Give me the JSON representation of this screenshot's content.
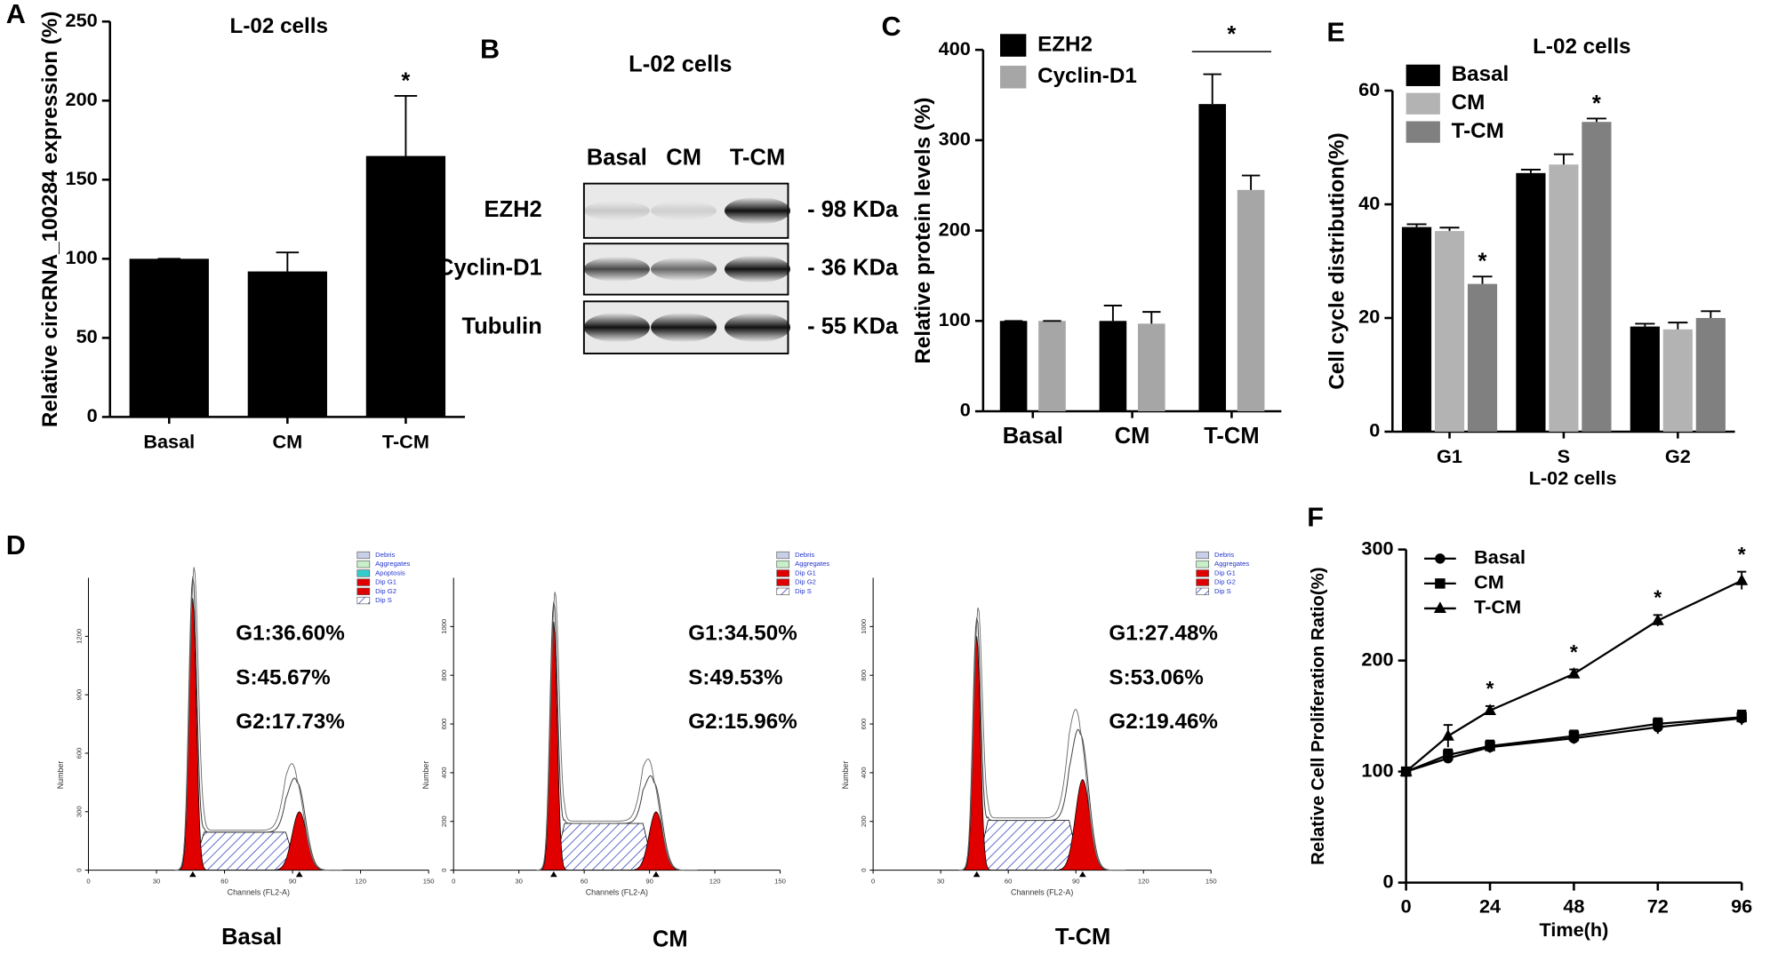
{
  "chart_data": [
    {
      "type": "bar",
      "letter": "A",
      "title": "L-02 cells",
      "ylabel": "Relative circRNA_100284 expression (%)",
      "categories": [
        "Basal",
        "CM",
        "T-CM"
      ],
      "values": [
        100,
        92,
        165
      ],
      "errors": [
        0,
        12,
        38
      ],
      "color": "#000000",
      "ylim": [
        0,
        250
      ],
      "yticks": [
        0,
        50,
        100,
        150,
        200,
        250
      ],
      "annotations": [
        {
          "text": "*",
          "at": "T-CM"
        }
      ]
    },
    {
      "type": "bar",
      "letter": "C",
      "ylabel": "Relative protein levels (%)",
      "categories": [
        "Basal",
        "CM",
        "T-CM"
      ],
      "series": [
        {
          "name": "EZH2",
          "color": "#000000",
          "values": [
            100,
            100,
            340
          ],
          "errors": [
            0,
            17,
            33
          ]
        },
        {
          "name": "Cyclin-D1",
          "color": "#a6a6a6",
          "values": [
            100,
            97,
            245
          ],
          "errors": [
            0,
            13,
            16
          ]
        }
      ],
      "ylim": [
        0,
        400
      ],
      "yticks": [
        0,
        100,
        200,
        300,
        400
      ],
      "legend": "top-left",
      "annotations": [
        {
          "text": "*",
          "at": "T-CM"
        }
      ]
    },
    {
      "type": "bar",
      "letter": "E",
      "title": "L-02 cells",
      "xlabel": "L-02 cells",
      "ylabel": "Cell cycle distribution(%)",
      "categories": [
        "G1",
        "S",
        "G2"
      ],
      "series": [
        {
          "name": "Basal",
          "color": "#000000",
          "values": [
            36,
            45.5,
            18.5
          ],
          "errors": [
            0.5,
            0.6,
            0.5
          ]
        },
        {
          "name": "CM",
          "color": "#b3b3b3",
          "values": [
            35.3,
            47,
            18
          ],
          "errors": [
            0.6,
            1.8,
            1.2
          ]
        },
        {
          "name": "T-CM",
          "color": "#808080",
          "values": [
            26,
            54.5,
            20
          ],
          "errors": [
            1.3,
            0.6,
            1.2
          ]
        }
      ],
      "ylim": [
        0,
        60
      ],
      "yticks": [
        0,
        20,
        40,
        60
      ],
      "legend": "top-left",
      "annotations": [
        {
          "text": "*",
          "at": "G1",
          "series": "T-CM"
        },
        {
          "text": "*",
          "at": "S",
          "series": "T-CM"
        }
      ]
    },
    {
      "type": "line",
      "letter": "F",
      "xlabel": "Time(h)",
      "ylabel": "Relative Cell Proliferation Ratio(%)",
      "x": [
        0,
        12,
        24,
        48,
        72,
        96
      ],
      "series": [
        {
          "name": "Basal",
          "color": "#000000",
          "marker": "circle",
          "values": [
            100,
            112,
            122,
            130,
            140,
            148
          ],
          "errors": [
            0,
            4,
            5,
            5,
            6,
            6
          ]
        },
        {
          "name": "CM",
          "color": "#000000",
          "marker": "square",
          "values": [
            100,
            115,
            123,
            132,
            143,
            149
          ],
          "errors": [
            0,
            5,
            5,
            5,
            5,
            6
          ]
        },
        {
          "name": "T-CM",
          "color": "#000000",
          "marker": "triangle",
          "values": [
            100,
            132,
            155,
            188,
            236,
            272
          ],
          "errors": [
            0,
            10,
            4,
            4,
            5,
            8
          ]
        }
      ],
      "xlim": [
        0,
        96
      ],
      "xticks": [
        0,
        24,
        48,
        72,
        96
      ],
      "ylim": [
        0,
        300
      ],
      "yticks": [
        0,
        100,
        200,
        300
      ],
      "legend": "top-left",
      "annotations": [
        {
          "text": "*",
          "at": 24
        },
        {
          "text": "*",
          "at": 48
        },
        {
          "text": "*",
          "at": 72
        },
        {
          "text": "*",
          "at": 96
        }
      ]
    }
  ],
  "blot": {
    "letter": "B",
    "title": "L-02 cells",
    "lanes": [
      "Basal",
      "CM",
      "T-CM"
    ],
    "rows": [
      {
        "name": "EZH2",
        "size": "- 98 KDa"
      },
      {
        "name": "Cyclin-D1",
        "size": "- 36 KDa"
      },
      {
        "name": "Tubulin",
        "size": "- 55 KDa"
      }
    ]
  },
  "flow": {
    "letter": "D",
    "xlabel": "Channels (FL2-A)",
    "ylabel": "Number",
    "xlim": [
      0,
      150
    ],
    "xticks": [
      0,
      30,
      60,
      90,
      120,
      150
    ],
    "panels": [
      {
        "label": "Basal",
        "ylim": [
          0,
          1500
        ],
        "yticks": [
          0,
          300,
          600,
          900,
          1200
        ],
        "stats": [
          "G1:36.60%",
          "S:45.67%",
          "G2:17.73%"
        ],
        "legend": [
          {
            "name": "Debris",
            "color": "#c9cfe8"
          },
          {
            "name": "Aggregates",
            "color": "#c8f0c8"
          },
          {
            "name": "Apoptosis",
            "color": "#33cccc"
          },
          {
            "name": "Dip G1",
            "color": "#e00000"
          },
          {
            "name": "Dip G2",
            "color": "#e00000"
          },
          {
            "name": "Dip S",
            "color": "#ffffff"
          }
        ]
      },
      {
        "label": "CM",
        "ylim": [
          0,
          1200
        ],
        "yticks": [
          0,
          200,
          400,
          600,
          800,
          1000
        ],
        "stats": [
          "G1:34.50%",
          "S:49.53%",
          "G2:15.96%"
        ],
        "legend": [
          {
            "name": "Debris",
            "color": "#c9cfe8"
          },
          {
            "name": "Aggregates",
            "color": "#c8f0c8"
          },
          {
            "name": "Dip G1",
            "color": "#e00000"
          },
          {
            "name": "Dip G2",
            "color": "#e00000"
          },
          {
            "name": "Dip S",
            "color": "#ffffff"
          }
        ]
      },
      {
        "label": "T-CM",
        "ylim": [
          0,
          1200
        ],
        "yticks": [
          0,
          200,
          400,
          600,
          800,
          1000
        ],
        "stats": [
          "G1:27.48%",
          "S:53.06%",
          "G2:19.46%"
        ],
        "legend": [
          {
            "name": "Debris",
            "color": "#c9cfe8"
          },
          {
            "name": "Aggregates",
            "color": "#c8f0c8"
          },
          {
            "name": "Dip G1",
            "color": "#e00000"
          },
          {
            "name": "Dip G2",
            "color": "#e00000"
          },
          {
            "name": "Dip S",
            "color": "#ffffff"
          }
        ]
      }
    ]
  }
}
